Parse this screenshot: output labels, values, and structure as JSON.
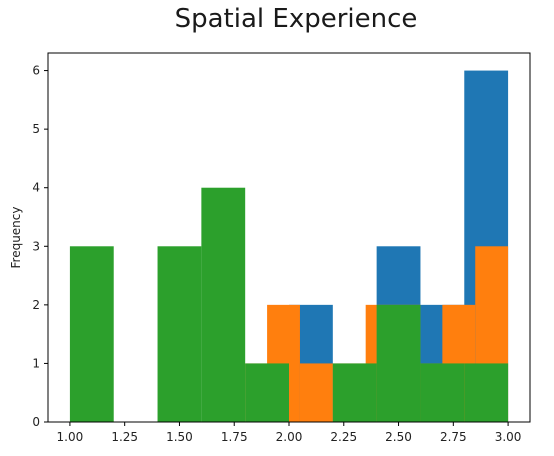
{
  "chart_data": {
    "type": "bar",
    "subtype": "overlaid histogram",
    "title": "Spatial Experience",
    "xlabel": "",
    "ylabel": "Frequency",
    "xlim": [
      0.9,
      3.1
    ],
    "ylim": [
      0,
      6.3
    ],
    "x_ticks": [
      "1.00",
      "1.25",
      "1.50",
      "1.75",
      "2.00",
      "2.25",
      "2.50",
      "2.75",
      "3.00"
    ],
    "y_ticks": [
      "0",
      "1",
      "2",
      "3",
      "4",
      "5",
      "6"
    ],
    "grid": false,
    "legend": "none",
    "series": [
      {
        "color": "#1f77b4",
        "bins": [
          {
            "x0": 2.0,
            "x1": 2.2,
            "count": 2
          },
          {
            "x0": 2.4,
            "x1": 2.6,
            "count": 3
          },
          {
            "x0": 2.6,
            "x1": 2.8,
            "count": 2
          },
          {
            "x0": 2.8,
            "x1": 3.0,
            "count": 6
          }
        ]
      },
      {
        "color": "#ff7f0e",
        "bins": [
          {
            "x0": 1.8,
            "x1": 1.9,
            "count": 1
          },
          {
            "x0": 1.9,
            "x1": 2.05,
            "count": 2
          },
          {
            "x0": 2.05,
            "x1": 2.2,
            "count": 1
          },
          {
            "x0": 2.2,
            "x1": 2.35,
            "count": 1
          },
          {
            "x0": 2.35,
            "x1": 2.4,
            "count": 2
          },
          {
            "x0": 2.4,
            "x1": 2.6,
            "count": 2
          },
          {
            "x0": 2.6,
            "x1": 2.7,
            "count": 1
          },
          {
            "x0": 2.7,
            "x1": 2.85,
            "count": 2
          },
          {
            "x0": 2.85,
            "x1": 3.0,
            "count": 3
          }
        ]
      },
      {
        "color": "#2ca02c",
        "bins": [
          {
            "x0": 1.0,
            "x1": 1.2,
            "count": 3
          },
          {
            "x0": 1.4,
            "x1": 1.6,
            "count": 3
          },
          {
            "x0": 1.6,
            "x1": 1.8,
            "count": 4
          },
          {
            "x0": 1.8,
            "x1": 2.0,
            "count": 1
          },
          {
            "x0": 2.2,
            "x1": 2.4,
            "count": 1
          },
          {
            "x0": 2.4,
            "x1": 2.6,
            "count": 2
          },
          {
            "x0": 2.6,
            "x1": 2.8,
            "count": 1
          },
          {
            "x0": 2.8,
            "x1": 3.0,
            "count": 1
          }
        ]
      }
    ]
  }
}
